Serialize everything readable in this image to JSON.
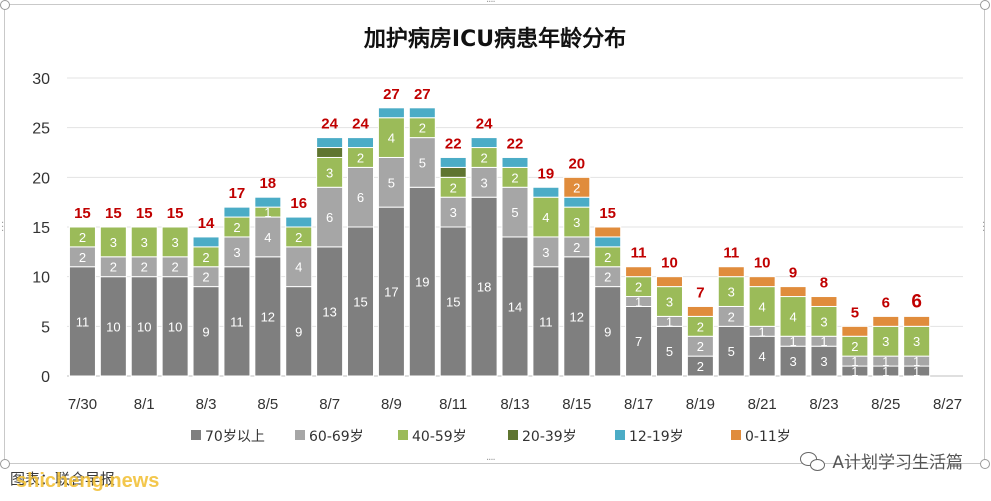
{
  "chart_data": {
    "type": "stacked-bar",
    "title": "加护病房ICU病患年龄分布",
    "ylim": [
      0,
      30
    ],
    "yticks": [
      0,
      5,
      10,
      15,
      20,
      25,
      30
    ],
    "grid": true,
    "legend_position": "bottom",
    "categories": [
      "7/30",
      "7/31",
      "8/1",
      "8/2",
      "8/3",
      "8/4",
      "8/5",
      "8/6",
      "8/7",
      "8/8",
      "8/9",
      "8/10",
      "8/11",
      "8/12",
      "8/13",
      "8/14",
      "8/15",
      "8/16",
      "8/17",
      "8/18",
      "8/19",
      "8/20",
      "8/21",
      "8/22",
      "8/23",
      "8/24",
      "8/25",
      "8/26",
      "8/27"
    ],
    "xtick_labels": [
      "7/30",
      "8/1",
      "8/3",
      "8/5",
      "8/7",
      "8/9",
      "8/11",
      "8/13",
      "8/15",
      "8/17",
      "8/19",
      "8/21",
      "8/23",
      "8/25",
      "8/27"
    ],
    "series": [
      {
        "name": "70岁以上",
        "color": "#7f7f7f",
        "values": [
          11,
          10,
          10,
          10,
          9,
          11,
          12,
          9,
          13,
          15,
          17,
          19,
          15,
          18,
          14,
          11,
          12,
          9,
          7,
          5,
          2,
          5,
          4,
          3,
          3,
          1,
          1,
          1,
          null
        ]
      },
      {
        "name": "60-69岁",
        "color": "#a6a6a6",
        "values": [
          2,
          2,
          2,
          2,
          2,
          3,
          4,
          4,
          6,
          6,
          5,
          5,
          3,
          3,
          5,
          3,
          2,
          2,
          1,
          1,
          2,
          2,
          1,
          1,
          1,
          1,
          1,
          1,
          null
        ]
      },
      {
        "name": "40-59岁",
        "color": "#9bbb59",
        "values": [
          2,
          3,
          3,
          3,
          2,
          2,
          1,
          2,
          3,
          2,
          4,
          2,
          2,
          2,
          2,
          4,
          3,
          2,
          2,
          3,
          2,
          3,
          4,
          4,
          3,
          2,
          3,
          3,
          null
        ]
      },
      {
        "name": "20-39岁",
        "color": "#5f7530",
        "values": [
          0,
          0,
          0,
          0,
          0,
          0,
          0,
          0,
          1,
          0,
          0,
          0,
          1,
          0,
          0,
          0,
          0,
          0,
          0,
          0,
          0,
          0,
          0,
          0,
          0,
          0,
          0,
          0,
          null
        ]
      },
      {
        "name": "12-19岁",
        "color": "#4bacc6",
        "values": [
          0,
          0,
          0,
          0,
          1,
          1,
          1,
          1,
          1,
          1,
          1,
          1,
          1,
          1,
          1,
          1,
          1,
          1,
          0,
          0,
          0,
          0,
          0,
          0,
          0,
          0,
          0,
          0,
          null
        ]
      },
      {
        "name": "0-11岁",
        "color": "#e08c3c",
        "values": [
          0,
          0,
          0,
          0,
          0,
          0,
          0,
          0,
          0,
          0,
          0,
          0,
          0,
          0,
          0,
          0,
          2,
          1,
          1,
          1,
          1,
          1,
          1,
          1,
          1,
          1,
          1,
          1,
          null
        ]
      }
    ],
    "totals": [
      15,
      15,
      15,
      15,
      14,
      17,
      18,
      16,
      24,
      24,
      27,
      27,
      22,
      24,
      22,
      19,
      20,
      15,
      11,
      10,
      7,
      11,
      10,
      9,
      8,
      5,
      6,
      6,
      null
    ],
    "total_label_color": "#c00000"
  },
  "footer": {
    "source_text": "图表：联合早报",
    "watermark_text": "shicheng.news",
    "account_text": "A计划学习生活篇"
  },
  "icons": {
    "wechat": "wechat-icon"
  }
}
